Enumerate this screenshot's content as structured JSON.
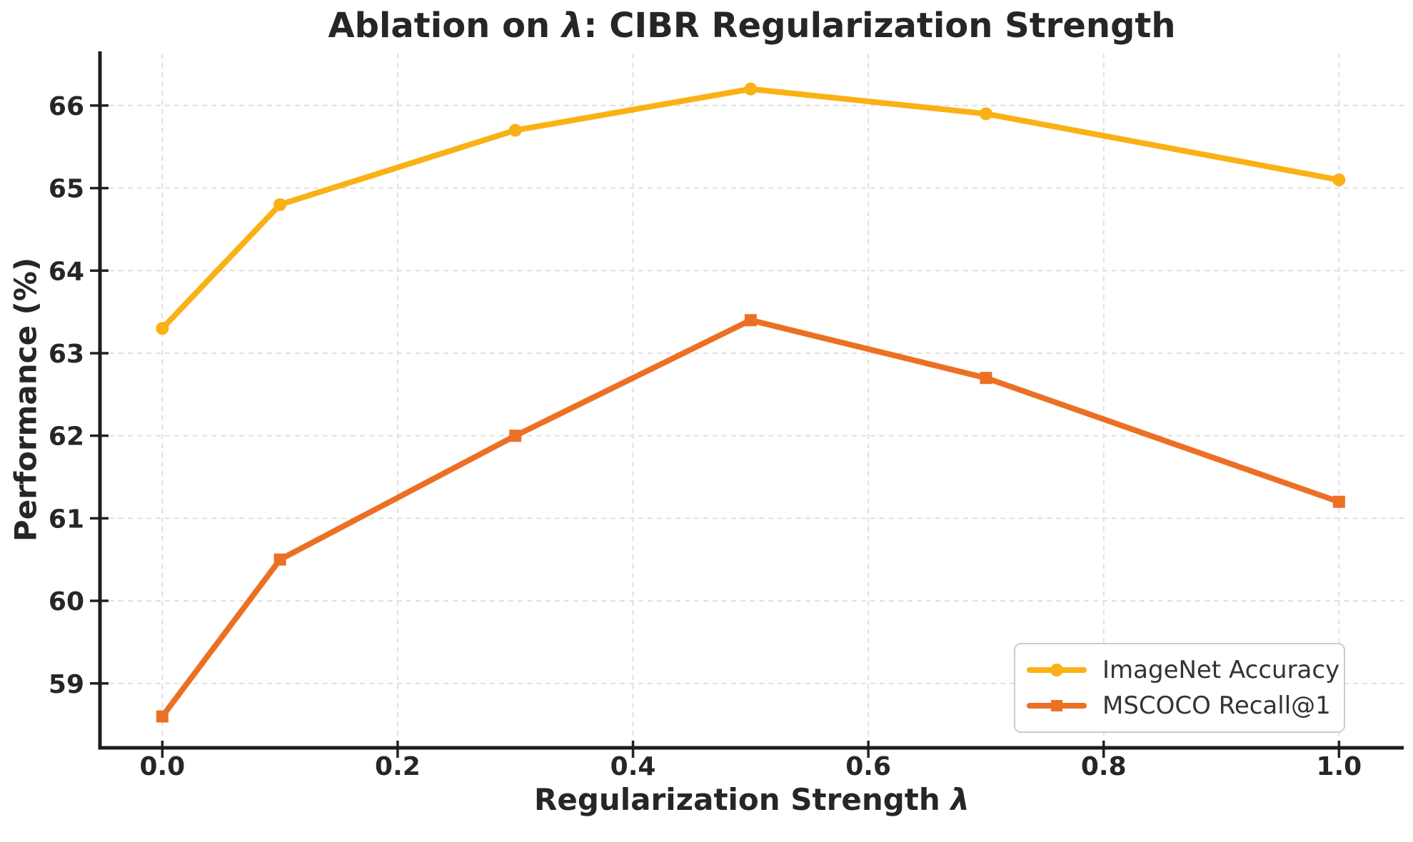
{
  "chart_data": {
    "type": "line",
    "title": "Ablation on λ: CIBR Regularization Strength",
    "title_parts": [
      "Ablation on ",
      "λ",
      ": CIBR Regularization Strength"
    ],
    "xlabel": "Regularization Strength λ",
    "xlabel_parts": [
      "Regularization Strength ",
      "λ"
    ],
    "ylabel": "Performance (%)",
    "x": [
      0.0,
      0.1,
      0.3,
      0.5,
      0.7,
      1.0
    ],
    "series": [
      {
        "name": "ImageNet Accuracy",
        "marker": "circle",
        "color": "#F9B115",
        "values": [
          63.3,
          64.8,
          65.7,
          66.2,
          65.9,
          65.1
        ]
      },
      {
        "name": "MSCOCO Recall@1",
        "marker": "square",
        "color": "#EC7024",
        "values": [
          58.6,
          60.5,
          62.0,
          63.4,
          62.7,
          61.2
        ]
      }
    ],
    "xticks": {
      "values": [
        0.0,
        0.2,
        0.4,
        0.6,
        0.8,
        1.0
      ],
      "labels": [
        "0.0",
        "0.2",
        "0.4",
        "0.6",
        "0.8",
        "1.0"
      ]
    },
    "yticks": {
      "values": [
        59,
        60,
        61,
        62,
        63,
        64,
        65,
        66
      ],
      "labels": [
        "59",
        "60",
        "61",
        "62",
        "63",
        "64",
        "65",
        "66"
      ]
    },
    "xlim": [
      -0.053,
      1.055
    ],
    "ylim": [
      58.22,
      66.63
    ],
    "grid": true,
    "grid_style": "dashed",
    "legend_position": "lower right",
    "colors": {
      "grid": "#e0e0e0",
      "spine": "#1c1c1c",
      "tick": "#222222",
      "text": "#262626",
      "legend_text": "#333333",
      "legend_border": "#cccccc",
      "background": "#ffffff"
    }
  }
}
